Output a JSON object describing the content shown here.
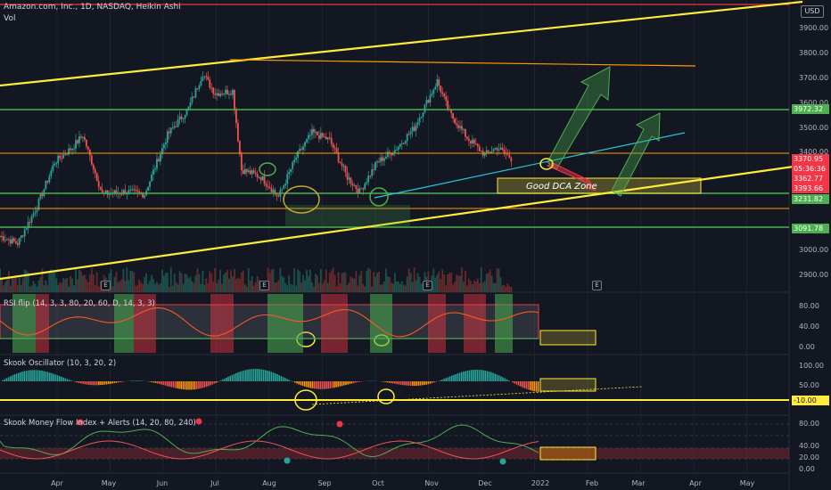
{
  "header": {
    "title": "Amazon.com, Inc., 1D, NASDAQ, Heikin Ashi",
    "volume_label": "Vol",
    "currency": "USD"
  },
  "panes": {
    "rsi_title": "RSI flip (14, 3, 3, 80, 20, 60, D, 14, 3, 3)",
    "skook_osc_title": "Skook Oscillator (10, 3, 20, 2)",
    "mfi_title": "Skook Money Flow Index + Alerts (14, 20, 80, 240)"
  },
  "annotations": {
    "zone_label": "Good DCA Zone"
  },
  "axes": {
    "price_ticks": [
      "3900.00",
      "3800.00",
      "3700.00",
      "3600.00",
      "3500.00",
      "3400.00",
      "3000.00",
      "2900.00"
    ],
    "rsi_ticks": [
      "80.00",
      "40.00",
      "0.00"
    ],
    "osc_ticks": [
      "100.00",
      "50.00"
    ],
    "mfi_ticks": [
      "80.00",
      "40.00",
      "20.00",
      "0.00"
    ],
    "x_ticks": [
      "Apr",
      "May",
      "Jun",
      "Jul",
      "Aug",
      "Sep",
      "Oct",
      "Nov",
      "Dec",
      "2022",
      "Feb",
      "Mar",
      "Apr",
      "May"
    ]
  },
  "price_tags": [
    {
      "text": "3972.32",
      "color": "#4caf50"
    },
    {
      "text": "3370.95",
      "color": "#f23645"
    },
    {
      "text": "05:36:36",
      "color": "#f23645"
    },
    {
      "text": "3362.77",
      "color": "#f23645"
    },
    {
      "text": "3393.66",
      "color": "#f23645"
    },
    {
      "text": "3231.82",
      "color": "#4caf50"
    },
    {
      "text": "3091.78",
      "color": "#4caf50"
    },
    {
      "text": "-10.00",
      "color": "#ffeb3b"
    }
  ],
  "earnings_badges": [
    "E",
    "E",
    "E",
    "E"
  ],
  "colors": {
    "background": "#131722",
    "up": "#26a69a",
    "down": "#ef5350",
    "trendline": "#ffeb3b",
    "support": "#4caf50",
    "resistance": "#ff9800",
    "channel": "#26c6da"
  },
  "chart_data": {
    "type": "candlestick",
    "symbol": "AMZN",
    "interval": "1D",
    "style": "Heikin Ashi",
    "ylim": [
      2850,
      3960
    ],
    "x_range": [
      "2021-03-15",
      "2022-05-25"
    ],
    "closes": [
      {
        "x": "2021-03-15",
        "y": 3060
      },
      {
        "x": "2021-03-25",
        "y": 3030
      },
      {
        "x": "2021-04-05",
        "y": 3180
      },
      {
        "x": "2021-04-15",
        "y": 3360
      },
      {
        "x": "2021-04-25",
        "y": 3420
      },
      {
        "x": "2021-05-01",
        "y": 3470
      },
      {
        "x": "2021-05-12",
        "y": 3230
      },
      {
        "x": "2021-05-25",
        "y": 3240
      },
      {
        "x": "2021-06-05",
        "y": 3230
      },
      {
        "x": "2021-06-18",
        "y": 3470
      },
      {
        "x": "2021-06-30",
        "y": 3580
      },
      {
        "x": "2021-07-08",
        "y": 3720
      },
      {
        "x": "2021-07-15",
        "y": 3640
      },
      {
        "x": "2021-07-25",
        "y": 3650
      },
      {
        "x": "2021-07-30",
        "y": 3330
      },
      {
        "x": "2021-08-10",
        "y": 3300
      },
      {
        "x": "2021-08-20",
        "y": 3220
      },
      {
        "x": "2021-08-30",
        "y": 3380
      },
      {
        "x": "2021-09-08",
        "y": 3480
      },
      {
        "x": "2021-09-18",
        "y": 3450
      },
      {
        "x": "2021-09-28",
        "y": 3300
      },
      {
        "x": "2021-10-05",
        "y": 3240
      },
      {
        "x": "2021-10-15",
        "y": 3360
      },
      {
        "x": "2021-10-25",
        "y": 3410
      },
      {
        "x": "2021-11-05",
        "y": 3500
      },
      {
        "x": "2021-11-18",
        "y": 3690
      },
      {
        "x": "2021-11-25",
        "y": 3560
      },
      {
        "x": "2021-12-05",
        "y": 3460
      },
      {
        "x": "2021-12-15",
        "y": 3390
      },
      {
        "x": "2021-12-22",
        "y": 3420
      },
      {
        "x": "2021-12-31",
        "y": 3370
      }
    ],
    "levels": [
      {
        "name": "resistance",
        "y": 3972.32,
        "color": "#4caf50"
      },
      {
        "name": "support",
        "y": 3231.82,
        "color": "#4caf50"
      },
      {
        "name": "support",
        "y": 3091.78,
        "color": "#4caf50"
      }
    ],
    "indicators": {
      "rsi_flip_range": [
        0,
        100
      ],
      "skook_osc_level": -10,
      "mfi_range": [
        0,
        100
      ]
    }
  }
}
